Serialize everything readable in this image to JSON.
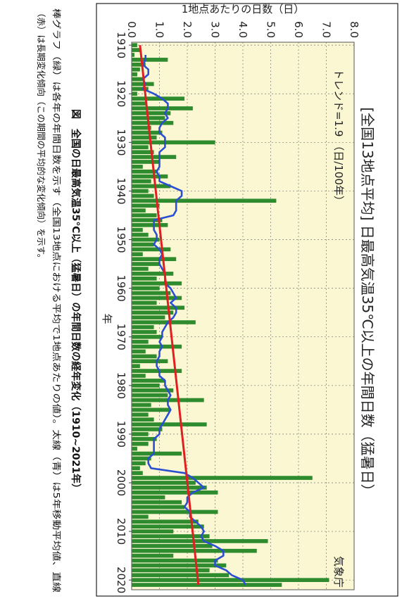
{
  "chart_data": {
    "type": "bar",
    "title": "[全国13地点平均] 日最高気温35℃以上の年間日数（猛暑日）",
    "xlabel": "年",
    "ylabel": "1地点あたりの日数（日）",
    "trend_label": "トレンド=1.9 （日/100年）",
    "source_label": "気象庁",
    "xlim": [
      1910,
      2021
    ],
    "ylim": [
      0.0,
      8.0
    ],
    "x_ticks": [
      "1910",
      "1920",
      "1930",
      "1940",
      "1950",
      "1960",
      "1970",
      "1980",
      "1990",
      "2000",
      "2010",
      "2020"
    ],
    "y_ticks": [
      "0.0",
      "1.0",
      "2.0",
      "3.0",
      "4.0",
      "5.0",
      "6.0",
      "7.0",
      "8.0"
    ],
    "grid": true,
    "years": [
      1910,
      1911,
      1912,
      1913,
      1914,
      1915,
      1916,
      1917,
      1918,
      1919,
      1920,
      1921,
      1922,
      1923,
      1924,
      1925,
      1926,
      1927,
      1928,
      1929,
      1930,
      1931,
      1932,
      1933,
      1934,
      1935,
      1936,
      1937,
      1938,
      1939,
      1940,
      1941,
      1942,
      1943,
      1944,
      1945,
      1946,
      1947,
      1948,
      1949,
      1950,
      1951,
      1952,
      1953,
      1954,
      1955,
      1956,
      1957,
      1958,
      1959,
      1960,
      1961,
      1962,
      1963,
      1964,
      1965,
      1966,
      1967,
      1968,
      1969,
      1970,
      1971,
      1972,
      1973,
      1974,
      1975,
      1976,
      1977,
      1978,
      1979,
      1980,
      1981,
      1982,
      1983,
      1984,
      1985,
      1986,
      1987,
      1988,
      1989,
      1990,
      1991,
      1992,
      1993,
      1994,
      1995,
      1996,
      1997,
      1998,
      1999,
      2000,
      2001,
      2002,
      2003,
      2004,
      2005,
      2006,
      2007,
      2008,
      2009,
      2010,
      2011,
      2012,
      2013,
      2014,
      2015,
      2016,
      2017,
      2018,
      2019,
      2020,
      2021
    ],
    "series": [
      {
        "type": "bar",
        "color": "#2e8b2e",
        "values": [
          0.2,
          0.3,
          0.1,
          1.3,
          0.5,
          0.3,
          0.2,
          0.4,
          0.8,
          0.6,
          0.2,
          1.9,
          0.5,
          2.2,
          1.4,
          1.2,
          1.5,
          0.7,
          1.1,
          0.9,
          3.0,
          0.6,
          0.8,
          1.6,
          1.0,
          0.4,
          0.9,
          1.3,
          0.7,
          1.4,
          0.6,
          0.8,
          5.2,
          1.0,
          0.5,
          0.9,
          1.1,
          1.3,
          0.4,
          0.6,
          1.0,
          0.8,
          1.4,
          0.4,
          1.6,
          1.0,
          0.6,
          1.5,
          0.9,
          1.8,
          1.0,
          1.4,
          1.8,
          0.9,
          1.9,
          1.5,
          1.2,
          2.3,
          0.8,
          0.9,
          1.1,
          0.6,
          1.8,
          0.5,
          0.9,
          1.3,
          0.3,
          1.8,
          0.5,
          1.2,
          1.0,
          1.5,
          1.3,
          2.6,
          0.7,
          1.4,
          0.6,
          0.8,
          2.7,
          1.1,
          0.6,
          0.9,
          0.6,
          0.2,
          1.8,
          0.7,
          0.5,
          0.3,
          0.4,
          6.5,
          2.3,
          2.7,
          3.1,
          1.2,
          1.8,
          1.9,
          3.1,
          0.6,
          2.4,
          2.6,
          1.5,
          2.8,
          4.9,
          2.9,
          4.5,
          1.5,
          3.1,
          3.4,
          2.8,
          3.5,
          7.1,
          5.4
        ]
      },
      {
        "type": "line",
        "color": "#2a4fd0",
        "values": [
          null,
          null,
          0.5,
          0.5,
          0.4,
          0.6,
          0.6,
          0.4,
          0.5,
          0.4,
          0.8,
          1.1,
          1.3,
          1.3,
          1.2,
          1.3,
          1.1,
          1.0,
          1.0,
          1.2,
          1.2,
          1.2,
          1.0,
          1.0,
          1.0,
          1.0,
          0.9,
          1.0,
          1.0,
          1.4,
          1.8,
          1.8,
          1.6,
          1.6,
          1.6,
          1.5,
          0.8,
          0.8,
          0.8,
          0.9,
          0.9,
          0.8,
          1.0,
          1.1,
          1.0,
          1.0,
          1.1,
          1.2,
          1.2,
          1.2,
          1.4,
          1.5,
          1.6,
          1.4,
          1.6,
          1.6,
          1.5,
          1.3,
          1.2,
          1.1,
          1.1,
          1.0,
          1.1,
          1.0,
          1.0,
          0.9,
          0.9,
          1.0,
          1.0,
          1.2,
          1.2,
          1.3,
          1.4,
          1.3,
          1.3,
          1.4,
          1.3,
          1.2,
          1.1,
          1.0,
          1.0,
          0.8,
          0.8,
          0.8,
          0.8,
          0.6,
          0.6,
          0.7,
          1.9,
          2.2,
          2.4,
          2.6,
          2.2,
          2.0,
          2.0,
          1.9,
          2.1,
          2.1,
          2.3,
          2.5,
          2.6,
          2.5,
          2.6,
          3.0,
          3.3,
          3.3,
          3.0,
          3.0,
          3.4,
          3.6,
          4.0,
          4.1
        ]
      },
      {
        "type": "line",
        "color": "#e02020",
        "values": [
          0.3,
          2.4
        ],
        "x": [
          1910,
          2021
        ]
      }
    ]
  },
  "caption": {
    "line1": "図　全国の日最高気温35℃以上（猛暑日）の年間日数の経年変化（1910~2021年）",
    "line2": "棒グラフ（緑）は各年の年間日数を示す（全国13地点における平均で1地点あたりの値）。太線（青）は5年移動平均値、直線",
    "line3": "（赤）は長期変化傾向（この期間の平均的な変化傾向）を示す。"
  }
}
